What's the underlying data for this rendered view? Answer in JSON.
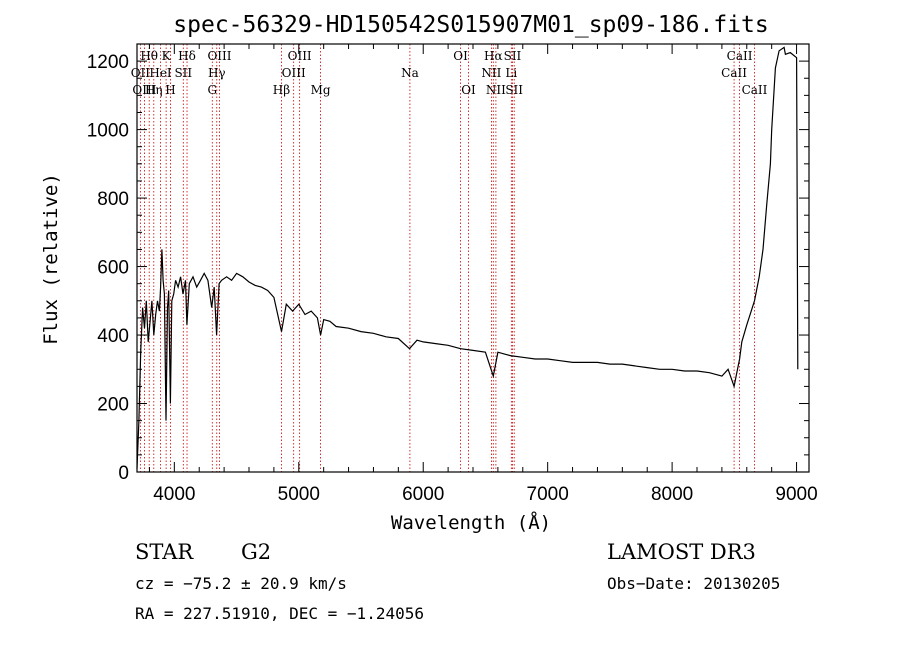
{
  "chart_data": {
    "type": "line",
    "title": "spec-56329-HD150542S015907M01_sp09-186.fits",
    "xlabel": "Wavelength (Å)",
    "ylabel": "Flux (relative)",
    "xlim": [
      3700,
      9100
    ],
    "ylim": [
      0,
      1250
    ],
    "xticks": [
      4000,
      5000,
      6000,
      7000,
      8000,
      9000
    ],
    "yticks": [
      0,
      200,
      400,
      600,
      800,
      1000,
      1200
    ],
    "series": [
      {
        "name": "flux",
        "x": [
          3700,
          3715,
          3730,
          3745,
          3760,
          3775,
          3790,
          3805,
          3820,
          3835,
          3850,
          3865,
          3880,
          3890,
          3900,
          3910,
          3920,
          3933,
          3945,
          3955,
          3968,
          3980,
          3995,
          4010,
          4030,
          4050,
          4070,
          4090,
          4101,
          4120,
          4150,
          4180,
          4210,
          4240,
          4270,
          4300,
          4320,
          4340,
          4360,
          4380,
          4420,
          4460,
          4500,
          4550,
          4600,
          4650,
          4700,
          4750,
          4800,
          4861,
          4900,
          4950,
          5000,
          5050,
          5100,
          5150,
          5175,
          5200,
          5250,
          5300,
          5400,
          5500,
          5600,
          5700,
          5800,
          5890,
          5950,
          6000,
          6100,
          6200,
          6300,
          6400,
          6500,
          6563,
          6600,
          6650,
          6700,
          6800,
          6900,
          7000,
          7100,
          7200,
          7300,
          7400,
          7500,
          7600,
          7700,
          7800,
          7900,
          8000,
          8100,
          8200,
          8300,
          8400,
          8450,
          8498,
          8520,
          8542,
          8560,
          8600,
          8662,
          8700,
          8730,
          8760,
          8790,
          8800,
          8830,
          8860,
          8900,
          8910,
          8950,
          9000,
          9010
        ],
        "y": [
          10,
          150,
          350,
          480,
          420,
          500,
          380,
          440,
          500,
          400,
          460,
          500,
          470,
          540,
          650,
          560,
          520,
          150,
          480,
          530,
          200,
          500,
          520,
          560,
          540,
          570,
          520,
          560,
          430,
          550,
          570,
          540,
          560,
          580,
          560,
          480,
          540,
          400,
          550,
          560,
          570,
          560,
          580,
          570,
          555,
          545,
          540,
          530,
          510,
          410,
          490,
          470,
          490,
          460,
          470,
          450,
          400,
          445,
          440,
          425,
          420,
          410,
          405,
          395,
          390,
          360,
          385,
          380,
          375,
          370,
          360,
          355,
          350,
          280,
          350,
          345,
          340,
          335,
          330,
          330,
          325,
          320,
          320,
          320,
          315,
          315,
          310,
          305,
          300,
          300,
          295,
          295,
          290,
          280,
          300,
          250,
          290,
          330,
          380,
          430,
          500,
          570,
          650,
          780,
          900,
          1000,
          1180,
          1230,
          1240,
          1220,
          1225,
          1210,
          300
        ]
      }
    ],
    "spectral_lines": [
      {
        "name": "Hθ",
        "x": 3798,
        "row": 1
      },
      {
        "name": "K",
        "x": 3934,
        "row": 1
      },
      {
        "name": "Hδ",
        "x": 4102,
        "row": 1
      },
      {
        "name": "OIII",
        "x": 4363,
        "row": 1
      },
      {
        "name": "OIII",
        "x": 5007,
        "row": 1
      },
      {
        "name": "OI",
        "x": 6300,
        "row": 1
      },
      {
        "name": "Hα",
        "x": 6563,
        "row": 1
      },
      {
        "name": "SII",
        "x": 6717,
        "row": 1
      },
      {
        "name": "CaII",
        "x": 8542,
        "row": 1
      },
      {
        "name": "OII",
        "x": 3727,
        "row": 2
      },
      {
        "name": "HeI",
        "x": 3889,
        "row": 2
      },
      {
        "name": "SII",
        "x": 4072,
        "row": 2
      },
      {
        "name": "Hγ",
        "x": 4341,
        "row": 2
      },
      {
        "name": "OIII",
        "x": 4959,
        "row": 2
      },
      {
        "name": "Na",
        "x": 5893,
        "row": 2
      },
      {
        "name": "NII",
        "x": 6548,
        "row": 2
      },
      {
        "name": "Li",
        "x": 6708,
        "row": 2
      },
      {
        "name": "CaII",
        "x": 8498,
        "row": 2
      },
      {
        "name": "OIII",
        "x": 3760,
        "row": 3
      },
      {
        "name": "Hη",
        "x": 3835,
        "row": 3
      },
      {
        "name": "H",
        "x": 3969,
        "row": 3
      },
      {
        "name": "G",
        "x": 4305,
        "row": 3
      },
      {
        "name": "Hβ",
        "x": 4861,
        "row": 3
      },
      {
        "name": "Mg",
        "x": 5175,
        "row": 3
      },
      {
        "name": "OI",
        "x": 6364,
        "row": 3
      },
      {
        "name": "NII",
        "x": 6584,
        "row": 3
      },
      {
        "name": "SII",
        "x": 6731,
        "row": 3
      },
      {
        "name": "CaII",
        "x": 8662,
        "row": 3
      }
    ]
  },
  "footer": {
    "object_class": "STAR",
    "subclass": "G2",
    "survey": "LAMOST DR3",
    "cz_line": "cz = −75.2 ± 20.9 km/s",
    "obs_date": "Obs−Date: 20130205",
    "coords": "RA = 227.51910, DEC =  −1.24056"
  },
  "colors": {
    "axis": "#000000",
    "spectrum": "#000000",
    "line_marker": "#cc0000"
  }
}
